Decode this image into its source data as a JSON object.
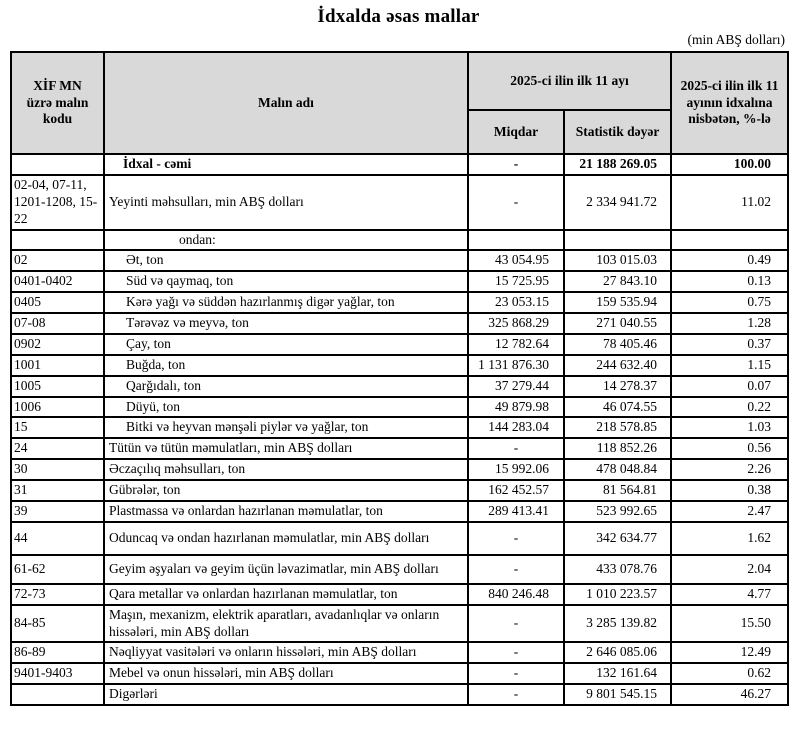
{
  "title": "İdxalda əsas mallar",
  "unit_note": "(min ABŞ dolları)",
  "table": {
    "header": {
      "col_code": "XİF MN üzrə malın kodu",
      "col_name": "Malın adı",
      "col_period": "2025-ci ilin ilk 11 ayı",
      "col_qty": "Miqdar",
      "col_value": "Statistik dəyər",
      "col_share": "2025-ci ilin ilk 11 ayının idxalına nisbətən, %-lə"
    },
    "rows": [
      {
        "code": "",
        "name": "İdxal - cəmi",
        "qty": "-",
        "value": "21 188 269.05",
        "share": "100.00",
        "style": "total"
      },
      {
        "code": "02-04, 07-11, 1201-1208, 15-22",
        "name": "Yeyinti məhsulları, min ABŞ dolları",
        "qty": "-",
        "value": "2 334 941.72",
        "share": "11.02",
        "style": "level0"
      },
      {
        "code": "",
        "name": "ondan:",
        "qty": "",
        "value": "",
        "share": "",
        "style": "ondan"
      },
      {
        "code": "02",
        "name": "Ət, ton",
        "qty": "43 054.95",
        "value": "103 015.03",
        "share": "0.49",
        "style": "sub"
      },
      {
        "code": "0401-0402",
        "name": "Süd və qaymaq, ton",
        "qty": "15 725.95",
        "value": "27 843.10",
        "share": "0.13",
        "style": "sub"
      },
      {
        "code": "0405",
        "name": "Kərə yağı və süddən hazırlanmış digər yağlar, ton",
        "qty": "23 053.15",
        "value": "159 535.94",
        "share": "0.75",
        "style": "sub"
      },
      {
        "code": "07-08",
        "name": "Tərəvəz və meyvə, ton",
        "qty": "325 868.29",
        "value": "271 040.55",
        "share": "1.28",
        "style": "sub"
      },
      {
        "code": "0902",
        "name": "Çay, ton",
        "qty": "12 782.64",
        "value": "78 405.46",
        "share": "0.37",
        "style": "sub"
      },
      {
        "code": "1001",
        "name": "Buğda, ton",
        "qty": "1 131 876.30",
        "value": "244 632.40",
        "share": "1.15",
        "style": "sub"
      },
      {
        "code": "1005",
        "name": "Qarğıdalı, ton",
        "qty": "37 279.44",
        "value": "14 278.37",
        "share": "0.07",
        "style": "sub"
      },
      {
        "code": "1006",
        "name": "Düyü, ton",
        "qty": "49 879.98",
        "value": "46 074.55",
        "share": "0.22",
        "style": "sub"
      },
      {
        "code": "15",
        "name": "Bitki və heyvan mənşəli piylər və yağlar, ton",
        "qty": "144 283.04",
        "value": "218 578.85",
        "share": "1.03",
        "style": "sub"
      },
      {
        "code": "24",
        "name": "Tütün və tütün məmulatları, min ABŞ dolları",
        "qty": "-",
        "value": "118 852.26",
        "share": "0.56",
        "style": "level0"
      },
      {
        "code": "30",
        "name": "Əczaçılıq məhsulları, ton",
        "qty": "15 992.06",
        "value": "478 048.84",
        "share": "2.26",
        "style": "level0"
      },
      {
        "code": "31",
        "name": "Gübrələr, ton",
        "qty": "162 452.57",
        "value": "81 564.81",
        "share": "0.38",
        "style": "level0"
      },
      {
        "code": "39",
        "name": "Plastmassa və onlardan hazırlanan məmulatlar, ton",
        "qty": "289 413.41",
        "value": "523 992.65",
        "share": "2.47",
        "style": "level0"
      },
      {
        "code": "44",
        "name": "Oduncaq və ondan hazırlanan məmulatlar, min ABŞ dolları",
        "qty": "-",
        "value": "342 634.77",
        "share": "1.62",
        "style": "level0"
      },
      {
        "code": "61-62",
        "name": "Geyim əşyaları və geyim üçün ləvazimatlar, min ABŞ dolları",
        "qty": "-",
        "value": "433 078.76",
        "share": "2.04",
        "style": "level0"
      },
      {
        "code": "72-73",
        "name": "Qara metallar və onlardan hazırlanan məmulatlar, ton",
        "qty": "840 246.48",
        "value": "1 010 223.57",
        "share": "4.77",
        "style": "level0"
      },
      {
        "code": "84-85",
        "name": "Maşın, mexanizm, elektrik aparatları, avadanlıqlar və onların hissələri, min ABŞ dolları",
        "qty": "-",
        "value": "3 285 139.82",
        "share": "15.50",
        "style": "level0"
      },
      {
        "code": "86-89",
        "name": "Nəqliyyat vasitələri və onların hissələri, min ABŞ dolları",
        "qty": "-",
        "value": "2 646 085.06",
        "share": "12.49",
        "style": "level0"
      },
      {
        "code": "9401-9403",
        "name": "Mebel və onun hissələri, min ABŞ dolları",
        "qty": "-",
        "value": "132 161.64",
        "share": "0.62",
        "style": "level0"
      },
      {
        "code": "",
        "name": "Digərləri",
        "qty": "-",
        "value": "9 801 545.15",
        "share": "46.27",
        "style": "level0"
      }
    ]
  }
}
